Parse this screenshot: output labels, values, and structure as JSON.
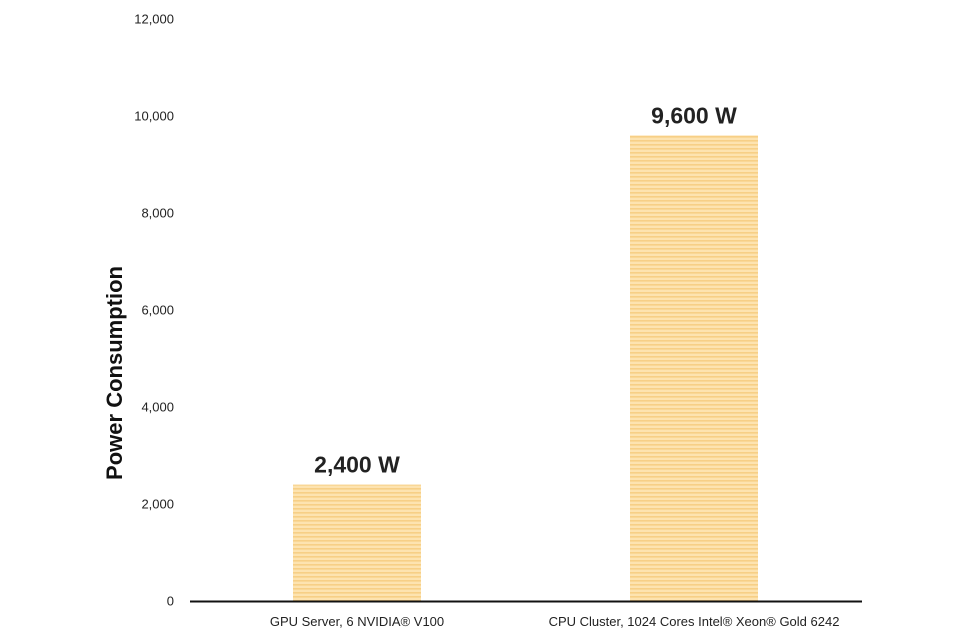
{
  "chart_data": {
    "type": "bar",
    "categories": [
      "GPU Server, 6 NVIDIA® V100",
      "CPU Cluster, 1024 Cores Intel® Xeon® Gold 6242"
    ],
    "values": [
      2400,
      9600
    ],
    "data_labels": [
      "2,400 W",
      "9,600 W"
    ],
    "ylabel": "Power Consumption",
    "xlabel": "",
    "title": "",
    "ylim": [
      0,
      12000
    ],
    "yticks": [
      0,
      2000,
      4000,
      6000,
      8000,
      10000,
      12000
    ],
    "ytick_labels": [
      "0",
      "2,000",
      "4,000",
      "6,000",
      "8,000",
      "10,000",
      "12,000"
    ],
    "grid": false,
    "bar_color": "#fde3b0",
    "bar_stripe_color": "#f7cf86",
    "axis_color": "#111111"
  }
}
